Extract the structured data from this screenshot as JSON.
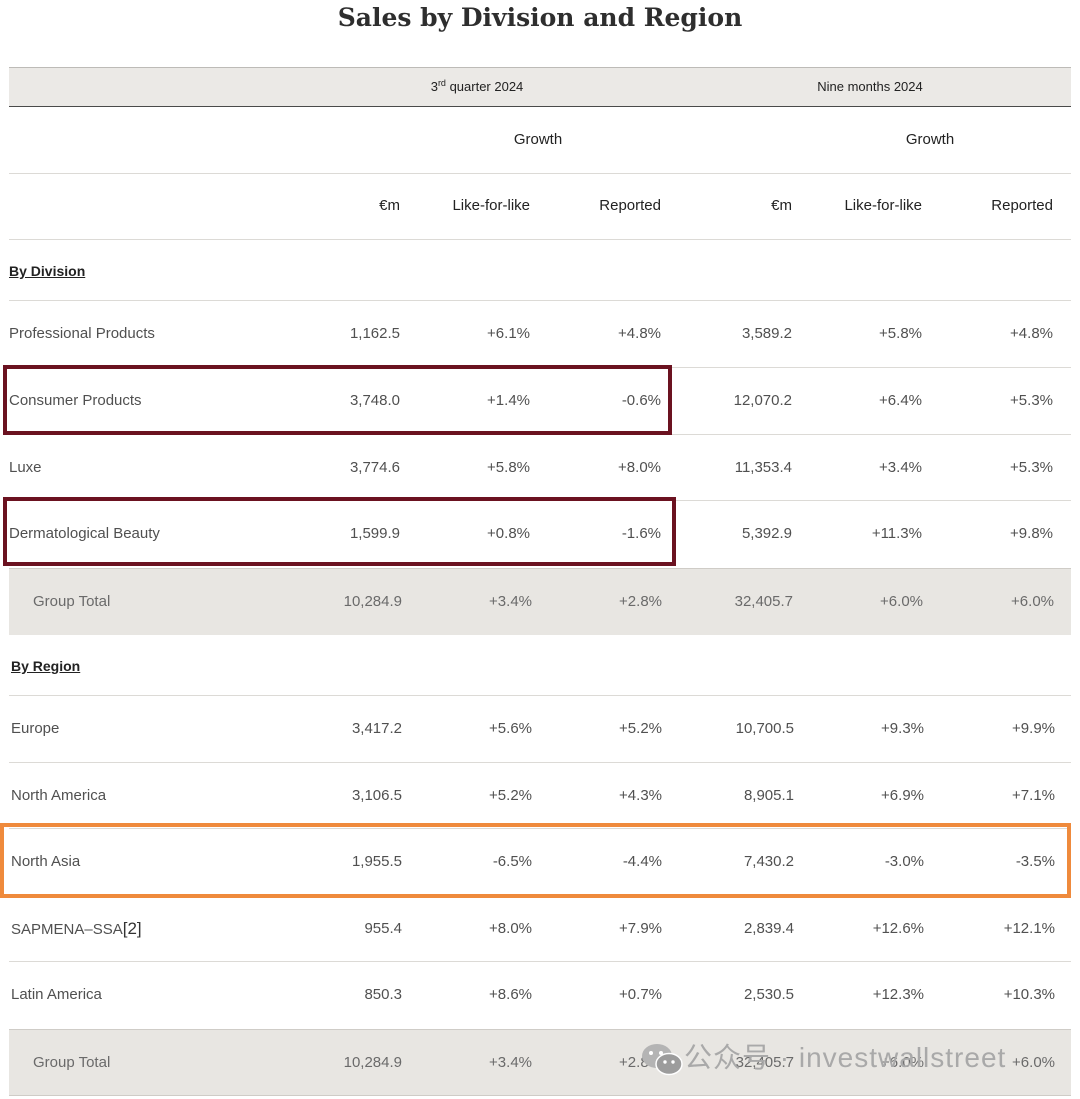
{
  "title": "Sales by Division and Region",
  "headers": {
    "q3_prefix": "3",
    "q3_sup": "rd",
    "q3_suffix": " quarter 2024",
    "nine_months": "Nine months 2024",
    "growth": "Growth",
    "em": "€m",
    "lfl": "Like-for-like",
    "reported": "Reported"
  },
  "division": {
    "section_label": "By Division",
    "rows": [
      {
        "label": "Professional Products",
        "q3_em": "1,162.5",
        "q3_lfl": "+6.1%",
        "q3_rep": "+4.8%",
        "nm_em": "3,589.2",
        "nm_lfl": "+5.8%",
        "nm_rep": "+4.8%"
      },
      {
        "label": "Consumer Products",
        "q3_em": "3,748.0",
        "q3_lfl": "+1.4%",
        "q3_rep": "-0.6%",
        "nm_em": "12,070.2",
        "nm_lfl": "+6.4%",
        "nm_rep": "+5.3%"
      },
      {
        "label": "Luxe",
        "q3_em": "3,774.6",
        "q3_lfl": "+5.8%",
        "q3_rep": "+8.0%",
        "nm_em": "11,353.4",
        "nm_lfl": "+3.4%",
        "nm_rep": "+5.3%"
      },
      {
        "label": "Dermatological Beauty",
        "q3_em": "1,599.9",
        "q3_lfl": "+0.8%",
        "q3_rep": "-1.6%",
        "nm_em": "5,392.9",
        "nm_lfl": "+11.3%",
        "nm_rep": "+9.8%"
      }
    ],
    "total": {
      "label": "Group Total",
      "q3_em": "10,284.9",
      "q3_lfl": "+3.4%",
      "q3_rep": "+2.8%",
      "nm_em": "32,405.7",
      "nm_lfl": "+6.0%",
      "nm_rep": "+6.0%"
    }
  },
  "region": {
    "section_label": "By Region",
    "rows": [
      {
        "label": "Europe",
        "q3_em": "3,417.2",
        "q3_lfl": "+5.6%",
        "q3_rep": "+5.2%",
        "nm_em": "10,700.5",
        "nm_lfl": "+9.3%",
        "nm_rep": "+9.9%"
      },
      {
        "label": "North America",
        "q3_em": "3,106.5",
        "q3_lfl": "+5.2%",
        "q3_rep": "+4.3%",
        "nm_em": "8,905.1",
        "nm_lfl": "+6.9%",
        "nm_rep": "+7.1%"
      },
      {
        "label": "North Asia",
        "q3_em": "1,955.5",
        "q3_lfl": "-6.5%",
        "q3_rep": "-4.4%",
        "nm_em": "7,430.2",
        "nm_lfl": "-3.0%",
        "nm_rep": "-3.5%"
      },
      {
        "label": "SAPMENA–SSA",
        "footnote": "[2]",
        "q3_em": "955.4",
        "q3_lfl": "+8.0%",
        "q3_rep": "+7.9%",
        "nm_em": "2,839.4",
        "nm_lfl": "+12.6%",
        "nm_rep": "+12.1%"
      },
      {
        "label": "Latin America",
        "q3_em": "850.3",
        "q3_lfl": "+8.6%",
        "q3_rep": "+0.7%",
        "nm_em": "2,530.5",
        "nm_lfl": "+12.3%",
        "nm_rep": "+10.3%"
      }
    ],
    "total": {
      "label": "Group Total",
      "q3_em": "10,284.9",
      "q3_lfl": "+3.4%",
      "q3_rep": "+2.8%",
      "nm_em": "32,405.7",
      "nm_lfl": "+6.0%",
      "nm_rep": "+6.0%"
    }
  },
  "highlight_colors": {
    "maroon": "#6b1220",
    "orange": "#ef8a3c"
  },
  "watermark": {
    "icon": "wechat-icon",
    "text": "公众号 · investwallstreet"
  }
}
